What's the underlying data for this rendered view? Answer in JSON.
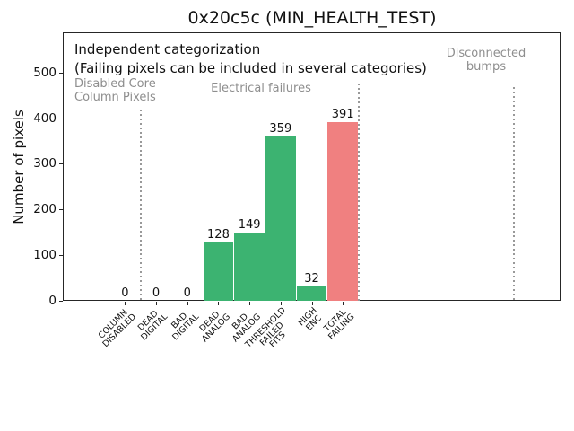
{
  "chart_data": {
    "type": "bar",
    "title": "0x20c5c (MIN_HEALTH_TEST)",
    "ylabel": "Number of pixels",
    "xlabel": "",
    "categories": [
      [
        "COLUMN",
        "DISABLED"
      ],
      [
        "DEAD",
        "DIGITAL"
      ],
      [
        "BAD",
        "DIGITAL"
      ],
      [
        "DEAD",
        "ANALOG"
      ],
      [
        "BAD",
        "ANALOG"
      ],
      [
        "THRESHOLD",
        "FAILED",
        "FITS"
      ],
      [
        "HIGH",
        "ENC"
      ],
      [
        "TOTAL",
        "FAILING"
      ]
    ],
    "values": [
      0,
      0,
      0,
      128,
      149,
      359,
      32,
      391
    ],
    "bar_colors": [
      "#3cb371",
      "#3cb371",
      "#3cb371",
      "#3cb371",
      "#3cb371",
      "#3cb371",
      "#3cb371",
      "#f08080"
    ],
    "value_labels": [
      "0",
      "0",
      "0",
      "128",
      "149",
      "359",
      "32",
      "391"
    ],
    "yticks": [
      0,
      100,
      200,
      300,
      400,
      500
    ],
    "ylim": [
      0,
      588
    ],
    "xlim": [
      -2,
      14
    ],
    "grid": false,
    "legend": null,
    "annotation_lines": [
      "Independent categorization",
      "(Failing pixels can be included in several categories)"
    ],
    "sections": [
      {
        "label_lines": [
          "Disabled Core",
          "Column Pixels"
        ],
        "divider_x": 0.5
      },
      {
        "label_lines": [
          "Electrical failures"
        ],
        "divider_x": 7.5
      },
      {
        "label_lines": [
          "Disconnected",
          "bumps"
        ],
        "divider_x": 12.5
      }
    ],
    "colors": {
      "bar_green": "#3cb371",
      "bar_red": "#f08080",
      "gray_text": "#8e8e8e",
      "divider_gray": "#999999"
    }
  }
}
